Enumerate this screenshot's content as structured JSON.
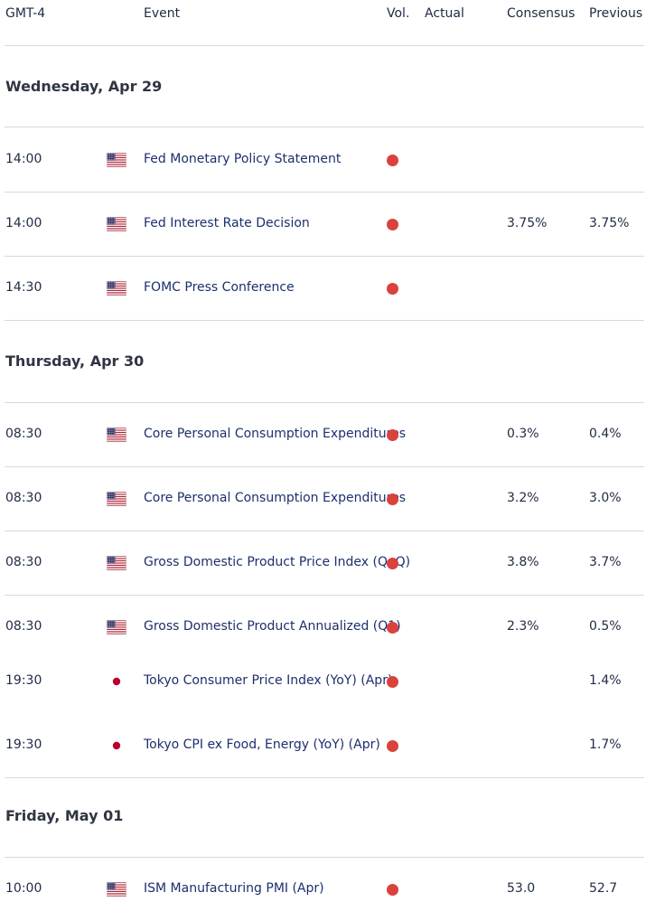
{
  "header": {
    "timezone": "GMT-4",
    "event": "Event",
    "volatility": "Vol.",
    "actual": "Actual",
    "consensus": "Consensus",
    "previous": "Previous"
  },
  "colors": {
    "high_volatility": "#d9423d",
    "event_text": "#1c2f6e",
    "divider": "#d5d8dd"
  },
  "days": [
    {
      "label": "Wednesday, Apr 29",
      "events": [
        {
          "time": "14:00",
          "country": "us-flag-icon",
          "event": "Fed Monetary Policy Statement",
          "volatility": "high",
          "actual": "",
          "consensus": "",
          "previous": ""
        },
        {
          "time": "14:00",
          "country": "us-flag-icon",
          "event": "Fed Interest Rate Decision",
          "volatility": "high",
          "actual": "",
          "consensus": "3.75%",
          "previous": "3.75%"
        },
        {
          "time": "14:30",
          "country": "us-flag-icon",
          "event": "FOMC Press Conference",
          "volatility": "high",
          "actual": "",
          "consensus": "",
          "previous": ""
        }
      ]
    },
    {
      "label": "Thursday, Apr 30",
      "events": [
        {
          "time": "08:30",
          "country": "us-flag-icon",
          "event": "Core Personal Consumption Expenditures",
          "volatility": "high",
          "actual": "",
          "consensus": "0.3%",
          "previous": "0.4%"
        },
        {
          "time": "08:30",
          "country": "us-flag-icon",
          "event": "Core Personal Consumption Expenditures",
          "volatility": "high",
          "actual": "",
          "consensus": "3.2%",
          "previous": "3.0%"
        },
        {
          "time": "08:30",
          "country": "us-flag-icon",
          "event": "Gross Domestic Product Price Index (QoQ)",
          "volatility": "high",
          "actual": "",
          "consensus": "3.8%",
          "previous": "3.7%"
        },
        {
          "time": "08:30",
          "country": "us-flag-icon",
          "event": "Gross Domestic Product Annualized (Q1)",
          "volatility": "high",
          "actual": "",
          "consensus": "2.3%",
          "previous": "0.5%"
        },
        {
          "time": "19:30",
          "country": "jp-flag-icon",
          "event": "Tokyo Consumer Price Index (YoY) (Apr)",
          "volatility": "high",
          "actual": "",
          "consensus": "",
          "previous": "1.4%"
        },
        {
          "time": "19:30",
          "country": "jp-flag-icon",
          "event": "Tokyo CPI ex Food, Energy (YoY) (Apr)",
          "volatility": "high",
          "actual": "",
          "consensus": "",
          "previous": "1.7%"
        }
      ]
    },
    {
      "label": "Friday, May 01",
      "events": [
        {
          "time": "10:00",
          "country": "us-flag-icon",
          "event": "ISM Manufacturing PMI (Apr)",
          "volatility": "high",
          "actual": "",
          "consensus": "53.0",
          "previous": "52.7"
        }
      ]
    }
  ]
}
